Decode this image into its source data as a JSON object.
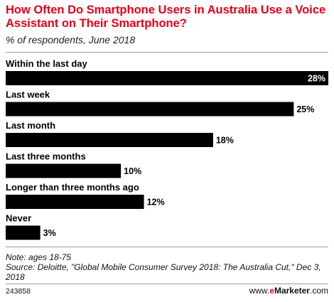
{
  "header": {
    "title": "How Often Do Smartphone Users in Australia Use a Voice Assistant on Their Smartphone?",
    "subtitle": "% of respondents, June 2018"
  },
  "chart_data": {
    "type": "bar",
    "orientation": "horizontal",
    "categories": [
      "Within the last day",
      "Last week",
      "Last month",
      "Last three months",
      "Longer than three months ago",
      "Never"
    ],
    "values": [
      28,
      25,
      18,
      10,
      12,
      3
    ],
    "value_labels": [
      "28%",
      "25%",
      "18%",
      "10%",
      "12%",
      "3%"
    ],
    "unit": "%",
    "xlim": [
      0,
      28
    ],
    "bar_color": "#000000",
    "label_inside_color": "#ffffff",
    "label_outside_color": "#000000",
    "grid": false,
    "legend": "none"
  },
  "notes": {
    "note": "Note: ages 18-75",
    "source": "Source: Deloitte, \"Global Mobile Consumer Survey 2018: The Australia Cut,\" Dec 3, 2018"
  },
  "footer": {
    "chart_id": "243858",
    "brand_prefix": "www.",
    "brand_e": "e",
    "brand_main": "Marketer",
    "brand_suffix": ".com"
  },
  "colors": {
    "title": "#e4001b",
    "bars": "#000000",
    "rule": "#999999"
  }
}
